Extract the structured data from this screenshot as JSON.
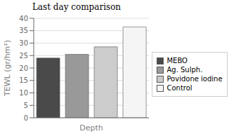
{
  "chart_data": {
    "type": "bar",
    "title": "Last day comparison",
    "xlabel": "Depth",
    "ylabel": "TEWL (gr/hm²)",
    "categories": [
      "MEBO",
      "Ag. Sulph.",
      "Povidone iodine",
      "Control"
    ],
    "values": [
      24.0,
      25.5,
      28.5,
      36.5
    ],
    "colors": [
      "#4a4a4a",
      "#999999",
      "#cccccc",
      "#f5f5f5"
    ],
    "ylim": [
      0,
      40
    ],
    "yticks": [
      0,
      5,
      10,
      15,
      20,
      25,
      30,
      35,
      40
    ],
    "grid": true,
    "legend": "right",
    "tick_labels": "y"
  }
}
